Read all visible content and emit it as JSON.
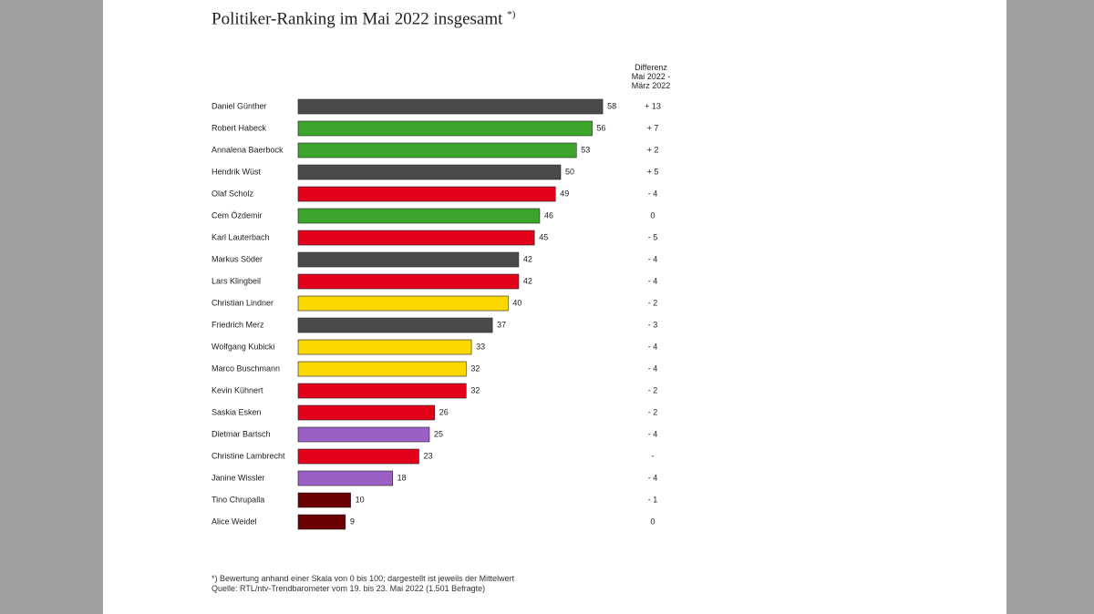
{
  "title": "Politiker-Ranking im Mai 2022 insgesamt",
  "title_marker": "*)",
  "diff_header": [
    "Differenz",
    "Mai 2022 -",
    "März 2022"
  ],
  "footnote_1": "*) Bewertung anhand einer Skala von 0 bis 100; dargestellt ist jeweils der Mittelwert",
  "footnote_2": "Quelle: RTL/ntv-Trendbarometer vom 19. bis 23. Mai 2022 (1.501 Befragte)",
  "colors": {
    "gray": "#4a4a4a",
    "green": "#3ea52c",
    "red": "#e2001a",
    "yellow": "#fcd700",
    "purple": "#9b5fc6",
    "maroon": "#6b0000"
  },
  "chart_data": {
    "type": "bar",
    "orientation": "horizontal",
    "xlim": [
      0,
      100
    ],
    "categories": [
      "Daniel Günther",
      "Robert Habeck",
      "Annalena Baerbock",
      "Hendrik Wüst",
      "Olaf Scholz",
      "Cem Özdemir",
      "Karl Lauterbach",
      "Markus Söder",
      "Lars Klingbeil",
      "Christian Lindner",
      "Friedrich Merz",
      "Wolfgang Kubicki",
      "Marco Buschmann",
      "Kevin Kühnert",
      "Saskia Esken",
      "Dietmar Bartsch",
      "Christine Lambrecht",
      "Janine Wissler",
      "Tino Chrupalla",
      "Alice Weidel"
    ],
    "values": [
      58,
      56,
      53,
      50,
      49,
      46,
      45,
      42,
      42,
      40,
      37,
      33,
      32,
      32,
      26,
      25,
      23,
      18,
      10,
      9
    ],
    "bar_colors": [
      "gray",
      "green",
      "green",
      "gray",
      "red",
      "green",
      "red",
      "gray",
      "red",
      "yellow",
      "gray",
      "yellow",
      "yellow",
      "red",
      "red",
      "purple",
      "red",
      "purple",
      "maroon",
      "maroon"
    ],
    "differences": [
      "+ 13",
      "+ 7",
      "+ 2",
      "+ 5",
      "- 4",
      "0",
      "- 5",
      "- 4",
      "- 4",
      "- 2",
      "- 3",
      "- 4",
      "- 4",
      "- 2",
      "- 2",
      "- 4",
      "-",
      "- 4",
      "- 1",
      "0"
    ]
  }
}
